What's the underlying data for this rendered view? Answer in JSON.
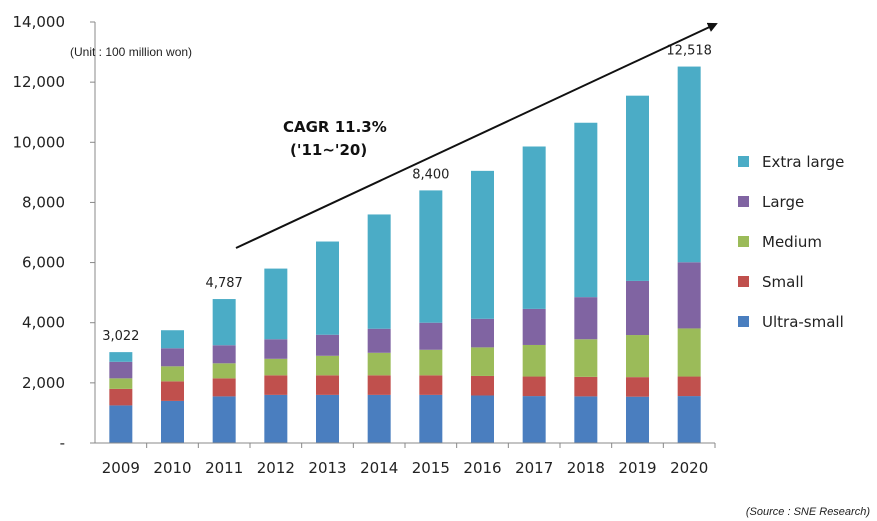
{
  "chart_data": {
    "type": "bar",
    "stacked": true,
    "categories": [
      "2009",
      "2010",
      "2011",
      "2012",
      "2013",
      "2014",
      "2015",
      "2016",
      "2017",
      "2018",
      "2019",
      "2020"
    ],
    "series": [
      {
        "name": "Ultra-small",
        "color": "#4a7ebf",
        "values": [
          1250,
          1400,
          1550,
          1600,
          1600,
          1600,
          1600,
          1580,
          1560,
          1550,
          1540,
          1560
        ]
      },
      {
        "name": "Small",
        "color": "#c0504d",
        "values": [
          550,
          650,
          600,
          650,
          650,
          650,
          650,
          650,
          650,
          650,
          650,
          650
        ]
      },
      {
        "name": "Medium",
        "color": "#9bbb59",
        "values": [
          350,
          500,
          500,
          550,
          650,
          750,
          850,
          950,
          1050,
          1250,
          1400,
          1600
        ]
      },
      {
        "name": "Large",
        "color": "#8064a2",
        "values": [
          550,
          600,
          600,
          650,
          700,
          800,
          900,
          950,
          1200,
          1400,
          1800,
          2200
        ]
      },
      {
        "name": "Extra large",
        "color": "#4bacc6",
        "values": [
          322,
          600,
          1537,
          2350,
          3100,
          3800,
          4400,
          4920,
          5400,
          5800,
          6160,
          6508
        ]
      }
    ],
    "ylim": [
      0,
      14000
    ],
    "yticks": [
      0,
      2000,
      4000,
      6000,
      8000,
      10000,
      12000,
      14000
    ],
    "ytick_labels": [
      "-",
      "2,000",
      "4,000",
      "6,000",
      "8,000",
      "10,000",
      "12,000",
      "14,000"
    ],
    "unit_label": "(Unit : 100 million won)",
    "data_labels": [
      {
        "category": "2009",
        "text": "3,022"
      },
      {
        "category": "2011",
        "text": "4,787"
      },
      {
        "category": "2015",
        "text": "8,400"
      },
      {
        "category": "2020",
        "text": "12,518"
      }
    ],
    "annotation": {
      "line1": "CAGR 11.3%",
      "line2": "('11~'20)"
    },
    "legend_position": "right",
    "legend_order": [
      "Extra large",
      "Large",
      "Medium",
      "Small",
      "Ultra-small"
    ],
    "grid": false,
    "source": "(Source : SNE Research)"
  }
}
